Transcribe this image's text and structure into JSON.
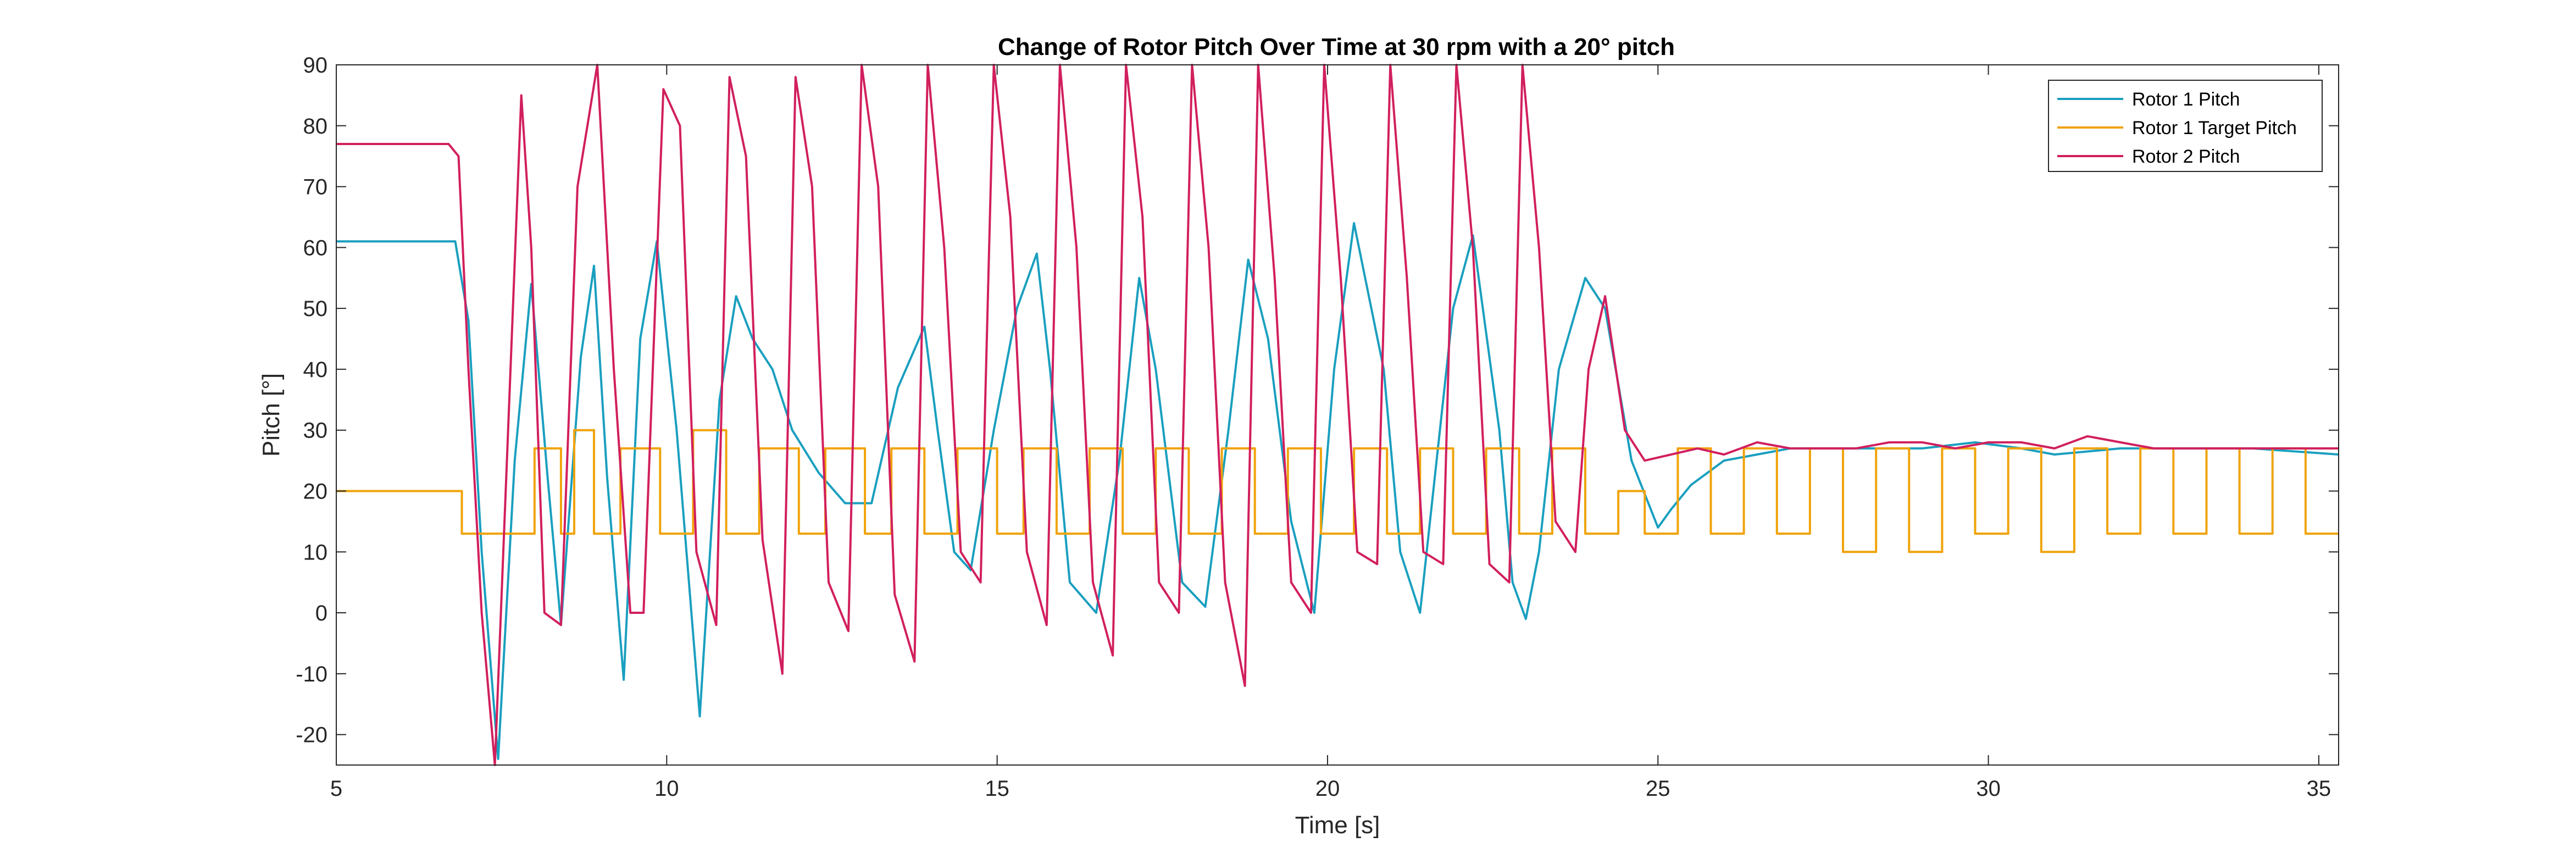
{
  "chart_data": {
    "type": "line",
    "title": "Change of Rotor Pitch Over Time at 30 rpm with a 20° pitch",
    "xlabel": "Time [s]",
    "ylabel": "Pitch [°]",
    "xlim": [
      5,
      35.3
    ],
    "ylim": [
      -25,
      90
    ],
    "xticks": [
      5,
      10,
      15,
      20,
      25,
      30,
      35
    ],
    "yticks": [
      -20,
      -10,
      0,
      10,
      20,
      30,
      40,
      50,
      60,
      70,
      80,
      90
    ],
    "grid": false,
    "legend": "top-right",
    "series": [
      {
        "name": "Rotor 1 Pitch",
        "color": "#1a9fbf",
        "x": [
          5.0,
          6.5,
          6.8,
          7.0,
          7.2,
          7.45,
          7.7,
          7.95,
          8.2,
          8.4,
          8.7,
          8.9,
          9.1,
          9.35,
          9.6,
          9.85,
          10.15,
          10.5,
          10.8,
          11.05,
          11.3,
          11.6,
          11.9,
          12.3,
          12.7,
          13.1,
          13.5,
          13.9,
          14.1,
          14.35,
          14.6,
          14.95,
          15.3,
          15.6,
          15.8,
          16.1,
          16.5,
          16.85,
          17.15,
          17.4,
          17.8,
          18.15,
          18.5,
          18.8,
          19.1,
          19.45,
          19.8,
          20.1,
          20.4,
          20.85,
          21.1,
          21.4,
          21.6,
          21.9,
          22.2,
          22.6,
          22.8,
          23.0,
          23.2,
          23.5,
          23.9,
          24.2,
          24.6,
          25.0,
          25.2,
          25.5,
          26.0,
          26.5,
          27.0,
          28.0,
          29.0,
          29.8,
          30.5,
          31.0,
          32.0,
          33.0,
          34.0,
          35.3
        ],
        "y": [
          61,
          61,
          61,
          48,
          10,
          -24,
          25,
          54,
          22,
          -2,
          42,
          57,
          22,
          -11,
          45,
          61,
          30,
          -17,
          35,
          52,
          45,
          40,
          30,
          23,
          18,
          18,
          37,
          47,
          30,
          10,
          7,
          30,
          50,
          59,
          40,
          5,
          0,
          25,
          55,
          40,
          5,
          1,
          30,
          58,
          45,
          15,
          0,
          40,
          64,
          40,
          10,
          0,
          20,
          50,
          62,
          30,
          5,
          -1,
          10,
          40,
          55,
          50,
          25,
          14,
          17,
          21,
          25,
          26,
          27,
          27,
          27,
          28,
          27,
          26,
          27,
          27,
          27,
          26
        ]
      },
      {
        "name": "Rotor 1 Target Pitch",
        "color": "#f0a30a",
        "x": [
          5.0,
          6.9,
          6.9,
          8.0,
          8.0,
          8.4,
          8.4,
          8.6,
          8.6,
          8.9,
          8.9,
          9.3,
          9.3,
          9.9,
          9.9,
          10.4,
          10.4,
          10.9,
          10.9,
          11.4,
          11.4,
          12.0,
          12.0,
          12.4,
          12.4,
          13.0,
          13.0,
          13.4,
          13.4,
          13.9,
          13.9,
          14.4,
          14.4,
          15.0,
          15.0,
          15.4,
          15.4,
          15.9,
          15.9,
          16.4,
          16.4,
          16.9,
          16.9,
          17.4,
          17.4,
          17.9,
          17.9,
          18.4,
          18.4,
          18.9,
          18.9,
          19.4,
          19.4,
          19.9,
          19.9,
          20.4,
          20.4,
          20.9,
          20.9,
          21.4,
          21.4,
          21.9,
          21.9,
          22.4,
          22.4,
          22.9,
          22.9,
          23.4,
          23.4,
          23.9,
          23.9,
          24.4,
          24.4,
          24.8,
          24.8,
          25.3,
          25.3,
          25.8,
          25.8,
          26.3,
          26.3,
          26.8,
          26.8,
          27.3,
          27.3,
          27.8,
          27.8,
          28.3,
          28.3,
          28.8,
          28.8,
          29.3,
          29.3,
          29.8,
          29.8,
          30.3,
          30.3,
          30.8,
          30.8,
          31.3,
          31.3,
          31.8,
          31.8,
          32.3,
          32.3,
          32.8,
          32.8,
          33.3,
          33.3,
          33.8,
          33.8,
          34.3,
          34.3,
          34.8,
          34.8,
          35.3
        ],
        "y": [
          20,
          20,
          13,
          13,
          27,
          27,
          13,
          13,
          30,
          30,
          13,
          13,
          27,
          27,
          13,
          13,
          30,
          30,
          13,
          13,
          27,
          27,
          13,
          13,
          27,
          27,
          13,
          13,
          27,
          27,
          13,
          13,
          27,
          27,
          13,
          13,
          27,
          27,
          13,
          13,
          27,
          27,
          13,
          13,
          27,
          27,
          13,
          13,
          27,
          27,
          13,
          13,
          27,
          27,
          13,
          13,
          27,
          27,
          13,
          13,
          27,
          27,
          13,
          13,
          27,
          27,
          13,
          13,
          27,
          27,
          13,
          13,
          20,
          20,
          13,
          13,
          27,
          27,
          13,
          13,
          27,
          27,
          13,
          13,
          27,
          27,
          10,
          10,
          27,
          27,
          10,
          10,
          27,
          27,
          13,
          13,
          27,
          27,
          10,
          10,
          27,
          27,
          13,
          13,
          27,
          27,
          13,
          13,
          27,
          27,
          13,
          13,
          27,
          27,
          13,
          13
        ]
      },
      {
        "name": "Rotor 2 Pitch",
        "color": "#d11f5e",
        "x": [
          5.0,
          6.5,
          6.7,
          6.85,
          7.0,
          7.2,
          7.4,
          7.6,
          7.8,
          7.95,
          8.15,
          8.4,
          8.65,
          8.95,
          9.2,
          9.45,
          9.65,
          9.95,
          10.2,
          10.45,
          10.75,
          10.95,
          11.2,
          11.45,
          11.75,
          11.95,
          12.2,
          12.45,
          12.75,
          12.95,
          13.2,
          13.45,
          13.75,
          13.95,
          14.2,
          14.45,
          14.75,
          14.95,
          15.2,
          15.45,
          15.75,
          15.95,
          16.2,
          16.45,
          16.75,
          16.95,
          17.2,
          17.45,
          17.75,
          17.95,
          18.2,
          18.45,
          18.75,
          18.95,
          19.2,
          19.45,
          19.75,
          19.95,
          20.2,
          20.45,
          20.75,
          20.95,
          21.2,
          21.45,
          21.75,
          21.95,
          22.2,
          22.45,
          22.75,
          22.95,
          23.2,
          23.45,
          23.75,
          23.95,
          24.2,
          24.5,
          24.8,
          25.2,
          25.6,
          26.0,
          26.5,
          27.0,
          27.5,
          28.0,
          28.5,
          29.0,
          29.5,
          30.0,
          30.5,
          31.0,
          31.5,
          32.0,
          32.5,
          33.0,
          33.5,
          34.0,
          34.5,
          35.0,
          35.3
        ],
        "y": [
          77,
          77,
          77,
          75,
          40,
          0,
          -25,
          30,
          85,
          60,
          0,
          -2,
          70,
          90,
          40,
          0,
          0,
          86,
          80,
          10,
          -2,
          88,
          75,
          12,
          -10,
          88,
          70,
          5,
          -3,
          90,
          70,
          3,
          -8,
          90,
          60,
          10,
          5,
          90,
          65,
          10,
          -2,
          90,
          60,
          5,
          -7,
          90,
          65,
          5,
          0,
          90,
          60,
          5,
          -12,
          90,
          55,
          5,
          0,
          90,
          55,
          10,
          8,
          90,
          55,
          10,
          8,
          90,
          60,
          8,
          5,
          90,
          60,
          15,
          10,
          40,
          52,
          30,
          25,
          26,
          27,
          26,
          28,
          27,
          27,
          27,
          28,
          28,
          27,
          28,
          28,
          27,
          29,
          28,
          27,
          27,
          27,
          27,
          27,
          27,
          27
        ]
      }
    ]
  }
}
